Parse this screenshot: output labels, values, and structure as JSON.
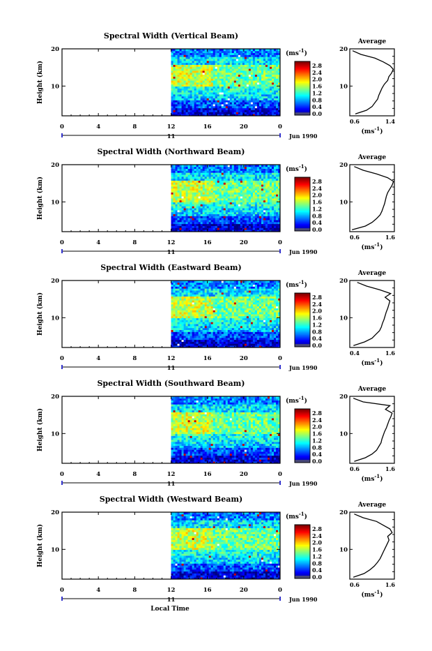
{
  "chart_data": [
    {
      "type": "heatmap",
      "title": "Spectral Width (Vertical Beam)",
      "ylabel": "Height (km)",
      "yticks": [
        "20",
        "10"
      ],
      "xticks": [
        "0",
        "4",
        "8",
        "12",
        "16",
        "20",
        "0"
      ],
      "day_label": "11",
      "date_label": "Jun 1990",
      "xlim": [
        0,
        24
      ],
      "ylim": [
        2,
        20
      ],
      "data_start_hour": 12,
      "colorbar": {
        "label": "(ms",
        "label_exp": "-1",
        "label_close": ")",
        "ticks": [
          "2.8",
          "2.4",
          "2.0",
          "1.6",
          "1.2",
          "0.8",
          "0.4",
          "0.0"
        ],
        "range": [
          0.0,
          2.8
        ]
      },
      "profile": {
        "title": "Average",
        "xticks": [
          "0.6",
          "1.4"
        ],
        "xlim": [
          0.6,
          1.4
        ],
        "yticks": [
          "20",
          "10"
        ],
        "xlabel": "(ms",
        "xlabel_exp": "-1",
        "xlabel_close": ")",
        "heights": [
          2.5,
          3.5,
          4.5,
          5.5,
          6.5,
          7.5,
          8.5,
          9.5,
          10.5,
          11.5,
          12.5,
          13.5,
          14.5,
          15.5,
          16.5,
          17.5,
          18.5,
          19.5
        ],
        "values": [
          0.7,
          0.9,
          1.0,
          1.05,
          1.1,
          1.12,
          1.15,
          1.18,
          1.22,
          1.28,
          1.3,
          1.35,
          1.38,
          1.32,
          1.2,
          1.05,
          0.8,
          0.65
        ]
      }
    },
    {
      "type": "heatmap",
      "title": "Spectral Width (Northward Beam)",
      "ylabel": "Height (km)",
      "yticks": [
        "20",
        "10"
      ],
      "xticks": [
        "0",
        "4",
        "8",
        "12",
        "16",
        "20",
        "0"
      ],
      "day_label": "11",
      "date_label": "Jun 1990",
      "xlim": [
        0,
        24
      ],
      "ylim": [
        2,
        20
      ],
      "data_start_hour": 12,
      "colorbar": {
        "label": "(ms",
        "label_exp": "-1",
        "label_close": ")",
        "ticks": [
          "2.8",
          "2.4",
          "2.0",
          "1.6",
          "1.2",
          "0.8",
          "0.4",
          "0.0"
        ],
        "range": [
          0.0,
          2.8
        ]
      },
      "profile": {
        "title": "Average",
        "xticks": [
          "0.6",
          "1.6"
        ],
        "xlim": [
          0.6,
          1.6
        ],
        "yticks": [
          "20",
          "10"
        ],
        "xlabel": "(ms",
        "xlabel_exp": "-1",
        "xlabel_close": ")",
        "heights": [
          2.5,
          3.5,
          4.5,
          5.5,
          6.5,
          7.5,
          8.5,
          9.5,
          10.5,
          11.5,
          12.5,
          13.5,
          14.5,
          15.5,
          16.5,
          17.5,
          18.5,
          19.5
        ],
        "values": [
          0.65,
          0.95,
          1.1,
          1.2,
          1.28,
          1.32,
          1.35,
          1.38,
          1.4,
          1.42,
          1.45,
          1.5,
          1.55,
          1.58,
          1.45,
          1.2,
          0.9,
          0.7
        ]
      }
    },
    {
      "type": "heatmap",
      "title": "Spectral Width (Eastward Beam)",
      "ylabel": "Height (km)",
      "yticks": [
        "20",
        "10"
      ],
      "xticks": [
        "0",
        "4",
        "8",
        "12",
        "16",
        "20",
        "0"
      ],
      "day_label": "11",
      "date_label": "Jun 1990",
      "xlim": [
        0,
        24
      ],
      "ylim": [
        2,
        20
      ],
      "data_start_hour": 12,
      "colorbar": {
        "label": "(ms",
        "label_exp": "-1",
        "label_close": ")",
        "ticks": [
          "2.8",
          "2.4",
          "2.0",
          "1.6",
          "1.2",
          "0.8",
          "0.4",
          "0.0"
        ],
        "range": [
          0.0,
          2.8
        ]
      },
      "profile": {
        "title": "Average",
        "xticks": [
          "0.4",
          "1.6"
        ],
        "xlim": [
          0.4,
          1.6
        ],
        "yticks": [
          "20",
          "10"
        ],
        "xlabel": "(ms",
        "xlabel_exp": "-1",
        "xlabel_close": ")",
        "heights": [
          2.5,
          3.5,
          4.5,
          5.5,
          6.5,
          7.5,
          8.5,
          9.5,
          10.5,
          11.5,
          12.5,
          13.5,
          14.5,
          15.5,
          16.5,
          17.5,
          18.5,
          19.5
        ],
        "values": [
          0.5,
          0.8,
          1.0,
          1.1,
          1.2,
          1.25,
          1.28,
          1.32,
          1.35,
          1.38,
          1.42,
          1.45,
          1.48,
          1.35,
          1.5,
          1.2,
          0.85,
          0.6
        ]
      }
    },
    {
      "type": "heatmap",
      "title": "Spectral Width (Southward Beam)",
      "ylabel": "Height (km)",
      "yticks": [
        "20",
        "10"
      ],
      "xticks": [
        "0",
        "4",
        "8",
        "12",
        "16",
        "20",
        "0"
      ],
      "day_label": "11",
      "date_label": "Jun 1990",
      "xlim": [
        0,
        24
      ],
      "ylim": [
        2,
        20
      ],
      "data_start_hour": 12,
      "colorbar": {
        "label": "(ms",
        "label_exp": "-1",
        "label_close": ")",
        "ticks": [
          "2.8",
          "2.4",
          "2.0",
          "1.6",
          "1.2",
          "0.8",
          "0.4",
          "0.0"
        ],
        "range": [
          0.0,
          2.8
        ]
      },
      "profile": {
        "title": "Average",
        "xticks": [
          "0.6",
          "1.6"
        ],
        "xlim": [
          0.6,
          1.6
        ],
        "yticks": [
          "20",
          "10"
        ],
        "xlabel": "(ms",
        "xlabel_exp": "-1",
        "xlabel_close": ")",
        "heights": [
          2.5,
          3.5,
          4.5,
          5.5,
          6.5,
          7.5,
          8.5,
          9.5,
          10.5,
          11.5,
          12.5,
          13.5,
          14.5,
          15.5,
          16.5,
          17.5,
          18.5,
          19.5
        ],
        "values": [
          0.7,
          0.95,
          1.1,
          1.2,
          1.25,
          1.3,
          1.32,
          1.35,
          1.38,
          1.42,
          1.45,
          1.48,
          1.52,
          1.55,
          1.4,
          1.5,
          0.9,
          0.68
        ]
      }
    },
    {
      "type": "heatmap",
      "title": "Spectral Width (Westward Beam)",
      "ylabel": "Height (km)",
      "yticks": [
        "20",
        "10"
      ],
      "xticks": [
        "0",
        "4",
        "8",
        "12",
        "16",
        "20",
        "0"
      ],
      "day_label": "11",
      "date_label": "Jun 1990",
      "xlabel": "Local Time",
      "xlim": [
        0,
        24
      ],
      "ylim": [
        2,
        20
      ],
      "data_start_hour": 12,
      "colorbar": {
        "label": "(ms",
        "label_exp": "-1",
        "label_close": ")",
        "ticks": [
          "2.8",
          "2.4",
          "2.0",
          "1.6",
          "1.2",
          "0.8",
          "0.4",
          "0.0"
        ],
        "range": [
          0.0,
          2.8
        ]
      },
      "profile": {
        "title": "Average",
        "xticks": [
          "0.6",
          "1.6"
        ],
        "xlim": [
          0.6,
          1.6
        ],
        "yticks": [
          "20",
          "10"
        ],
        "xlabel": "(ms",
        "xlabel_exp": "-1",
        "xlabel_close": ")",
        "heights": [
          2.5,
          3.5,
          4.5,
          5.5,
          6.5,
          7.5,
          8.5,
          9.5,
          10.5,
          11.5,
          12.5,
          13.5,
          14.5,
          15.5,
          16.5,
          17.5,
          18.5,
          19.5
        ],
        "values": [
          0.68,
          0.92,
          1.05,
          1.15,
          1.22,
          1.28,
          1.32,
          1.36,
          1.4,
          1.44,
          1.48,
          1.45,
          1.55,
          1.5,
          1.35,
          1.2,
          0.9,
          0.7
        ]
      }
    }
  ]
}
